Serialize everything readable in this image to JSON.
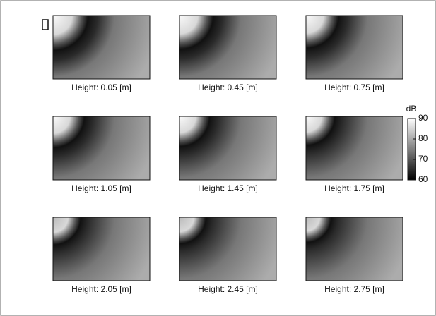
{
  "panels": [
    {
      "caption": "Height: 0.05 [m]"
    },
    {
      "caption": "Height: 0.45 [m]"
    },
    {
      "caption": "Height: 0.75 [m]"
    },
    {
      "caption": "Height: 1.05 [m]"
    },
    {
      "caption": "Height: 1.45 [m]"
    },
    {
      "caption": "Height: 1.75 [m]"
    },
    {
      "caption": "Height: 2.05 [m]"
    },
    {
      "caption": "Height: 2.45 [m]"
    },
    {
      "caption": "Height: 2.75 [m]"
    }
  ],
  "colorbar": {
    "label": "dB",
    "lim": [
      60,
      90
    ],
    "ticks": [
      60,
      70,
      80,
      90
    ]
  }
}
